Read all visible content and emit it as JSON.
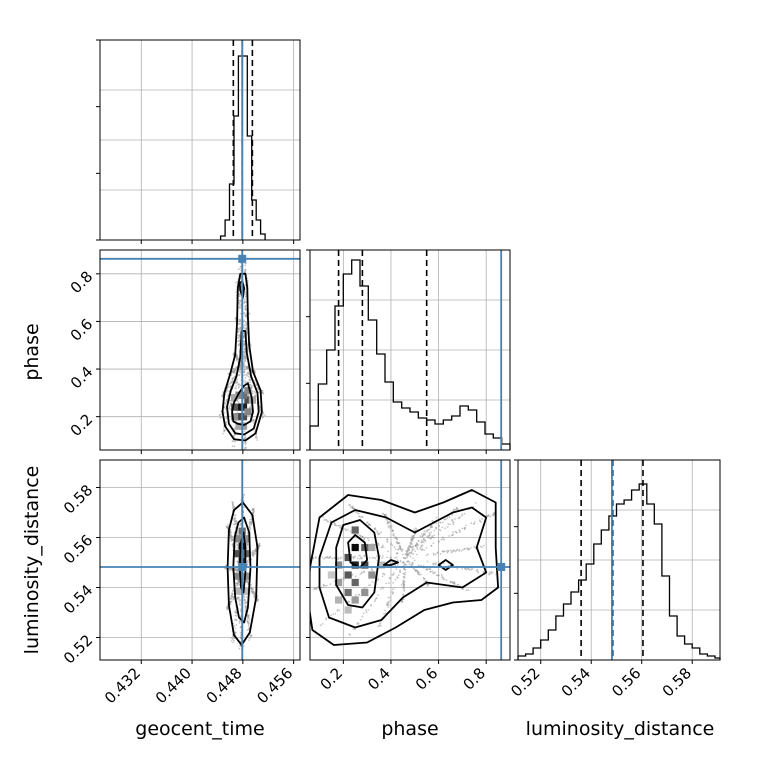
{
  "chart_data": {
    "type": "corner",
    "parameters": [
      {
        "name": "geocent_time",
        "label": "geocent_time",
        "range": [
          0.4255,
          0.457
        ],
        "ticks": [
          0.432,
          0.44,
          0.448,
          0.456
        ],
        "tick_labels": [
          "0.432",
          "0.440",
          "0.448",
          "0.456"
        ],
        "truth": 0.4479,
        "quantiles": [
          0.4465,
          0.4479,
          0.4495
        ],
        "hist": {
          "bins": [
            0.4445,
            0.4452,
            0.4459,
            0.4466,
            0.4473,
            0.448,
            0.4487,
            0.4494,
            0.4501,
            0.4508,
            0.4515
          ],
          "counts": [
            0.02,
            0.1,
            0.28,
            0.62,
            0.92,
            0.92,
            0.52,
            0.2,
            0.1,
            0.03
          ]
        }
      },
      {
        "name": "phase",
        "label": "phase",
        "range": [
          0.06,
          0.9
        ],
        "ticks": [
          0.2,
          0.4,
          0.6,
          0.8
        ],
        "tick_labels": [
          "0.2",
          "0.4",
          "0.6",
          "0.8"
        ],
        "truth": 0.863,
        "quantiles": [
          0.18,
          0.28,
          0.55
        ],
        "hist": {
          "bins": [
            0.06,
            0.095,
            0.13,
            0.165,
            0.2,
            0.235,
            0.27,
            0.305,
            0.34,
            0.375,
            0.41,
            0.445,
            0.48,
            0.515,
            0.55,
            0.585,
            0.62,
            0.655,
            0.69,
            0.725,
            0.76,
            0.795,
            0.83,
            0.865,
            0.9
          ],
          "counts": [
            0.12,
            0.33,
            0.5,
            0.72,
            0.88,
            0.95,
            0.82,
            0.65,
            0.48,
            0.34,
            0.24,
            0.21,
            0.19,
            0.16,
            0.15,
            0.13,
            0.15,
            0.17,
            0.22,
            0.2,
            0.14,
            0.08,
            0.06,
            0.03
          ]
        }
      },
      {
        "name": "luminosity_distance",
        "label": "luminosity_distance",
        "range": [
          0.511,
          0.591
        ],
        "ticks": [
          0.52,
          0.54,
          0.56,
          0.58
        ],
        "tick_labels": [
          "0.52",
          "0.54",
          "0.56",
          "0.58"
        ],
        "truth": 0.5482,
        "quantiles": [
          0.536,
          0.5485,
          0.5605
        ],
        "hist": {
          "bins": [
            0.511,
            0.514,
            0.517,
            0.52,
            0.523,
            0.526,
            0.529,
            0.532,
            0.535,
            0.538,
            0.541,
            0.544,
            0.547,
            0.55,
            0.553,
            0.556,
            0.559,
            0.562,
            0.565,
            0.568,
            0.571,
            0.574,
            0.577,
            0.58,
            0.583,
            0.586,
            0.589,
            0.591
          ],
          "counts": [
            0.02,
            0.03,
            0.06,
            0.1,
            0.15,
            0.22,
            0.28,
            0.34,
            0.4,
            0.48,
            0.58,
            0.65,
            0.72,
            0.78,
            0.8,
            0.85,
            0.88,
            0.78,
            0.68,
            0.42,
            0.22,
            0.12,
            0.08,
            0.06,
            0.03,
            0.02,
            0.01
          ]
        }
      }
    ],
    "pairs": [
      {
        "x": "geocent_time",
        "y": "phase",
        "contours": [
          [
            [
              0.4465,
              0.18
            ],
            [
              0.4472,
              0.17
            ],
            [
              0.4482,
              0.165
            ],
            [
              0.4492,
              0.18
            ],
            [
              0.4496,
              0.22
            ],
            [
              0.4494,
              0.28
            ],
            [
              0.4488,
              0.34
            ],
            [
              0.4482,
              0.33
            ],
            [
              0.4474,
              0.3
            ],
            [
              0.4466,
              0.26
            ],
            [
              0.4463,
              0.22
            ]
          ],
          [
            [
              0.4458,
              0.17
            ],
            [
              0.4468,
              0.13
            ],
            [
              0.4482,
              0.125
            ],
            [
              0.4497,
              0.15
            ],
            [
              0.4505,
              0.22
            ],
            [
              0.4503,
              0.3
            ],
            [
              0.4493,
              0.37
            ],
            [
              0.4486,
              0.47
            ],
            [
              0.4484,
              0.56
            ],
            [
              0.4478,
              0.56
            ],
            [
              0.4476,
              0.45
            ],
            [
              0.447,
              0.37
            ],
            [
              0.4461,
              0.31
            ],
            [
              0.4455,
              0.24
            ]
          ],
          [
            [
              0.4452,
              0.16
            ],
            [
              0.4466,
              0.105
            ],
            [
              0.4484,
              0.1
            ],
            [
              0.45,
              0.13
            ],
            [
              0.451,
              0.22
            ],
            [
              0.4508,
              0.31
            ],
            [
              0.4496,
              0.39
            ],
            [
              0.449,
              0.5
            ],
            [
              0.4488,
              0.62
            ],
            [
              0.4487,
              0.74
            ],
            [
              0.4484,
              0.8
            ],
            [
              0.4476,
              0.8
            ],
            [
              0.4472,
              0.74
            ],
            [
              0.4471,
              0.6
            ],
            [
              0.4468,
              0.46
            ],
            [
              0.446,
              0.38
            ],
            [
              0.4451,
              0.3
            ],
            [
              0.4448,
              0.22
            ]
          ],
          [
            [
              0.4476,
              0.73
            ],
            [
              0.448,
              0.7
            ],
            [
              0.4482,
              0.74
            ],
            [
              0.4479,
              0.77
            ],
            [
              0.4475,
              0.76
            ]
          ]
        ],
        "density": [
          [
            0.4474,
            0.24,
            1.0
          ],
          [
            0.4481,
            0.24,
            0.9
          ],
          [
            0.4474,
            0.2,
            0.75
          ],
          [
            0.4481,
            0.2,
            0.7
          ],
          [
            0.4467,
            0.24,
            0.65
          ],
          [
            0.4488,
            0.27,
            0.7
          ],
          [
            0.4481,
            0.29,
            0.55
          ],
          [
            0.4474,
            0.29,
            0.45
          ],
          [
            0.4488,
            0.31,
            0.45
          ],
          [
            0.4467,
            0.2,
            0.4
          ],
          [
            0.4488,
            0.22,
            0.45
          ],
          [
            0.4495,
            0.27,
            0.3
          ],
          [
            0.4481,
            0.16,
            0.35
          ],
          [
            0.4474,
            0.16,
            0.3
          ],
          [
            0.4467,
            0.28,
            0.3
          ]
        ]
      },
      {
        "x": "geocent_time",
        "y": "luminosity_distance",
        "contours": [
          [
            [
              0.4475,
              0.548
            ],
            [
              0.4477,
              0.558
            ],
            [
              0.4481,
              0.562
            ],
            [
              0.4484,
              0.556
            ],
            [
              0.4484,
              0.546
            ],
            [
              0.4481,
              0.538
            ],
            [
              0.4477,
              0.54
            ]
          ],
          [
            [
              0.4465,
              0.548
            ],
            [
              0.4467,
              0.56
            ],
            [
              0.4473,
              0.566
            ],
            [
              0.4482,
              0.568
            ],
            [
              0.449,
              0.562
            ],
            [
              0.4492,
              0.548
            ],
            [
              0.4488,
              0.532
            ],
            [
              0.4482,
              0.526
            ],
            [
              0.4474,
              0.528
            ],
            [
              0.4468,
              0.536
            ]
          ],
          [
            [
              0.4456,
              0.548
            ],
            [
              0.4458,
              0.563
            ],
            [
              0.4466,
              0.571
            ],
            [
              0.448,
              0.574
            ],
            [
              0.4495,
              0.569
            ],
            [
              0.4503,
              0.556
            ],
            [
              0.4501,
              0.536
            ],
            [
              0.4491,
              0.522
            ],
            [
              0.4478,
              0.517
            ],
            [
              0.4466,
              0.521
            ],
            [
              0.4458,
              0.533
            ]
          ]
        ],
        "density": [
          [
            0.4479,
            0.5565,
            1.0
          ],
          [
            0.4479,
            0.5505,
            0.85
          ],
          [
            0.4472,
            0.5535,
            0.7
          ],
          [
            0.4486,
            0.5535,
            0.6
          ],
          [
            0.4479,
            0.5445,
            0.6
          ],
          [
            0.4479,
            0.5625,
            0.55
          ],
          [
            0.4472,
            0.5445,
            0.45
          ],
          [
            0.4486,
            0.5445,
            0.4
          ],
          [
            0.4472,
            0.5595,
            0.45
          ],
          [
            0.4486,
            0.5595,
            0.4
          ],
          [
            0.4479,
            0.5385,
            0.35
          ],
          [
            0.4472,
            0.5385,
            0.25
          ],
          [
            0.4486,
            0.5385,
            0.2
          ]
        ]
      },
      {
        "x": "phase",
        "y": "luminosity_distance",
        "contours": [
          [
            [
              0.22,
              0.558
            ],
            [
              0.25,
              0.561
            ],
            [
              0.29,
              0.558
            ],
            [
              0.3,
              0.551
            ],
            [
              0.27,
              0.548
            ],
            [
              0.23,
              0.55
            ]
          ],
          [
            [
              0.17,
              0.556
            ],
            [
              0.2,
              0.565
            ],
            [
              0.27,
              0.567
            ],
            [
              0.33,
              0.562
            ],
            [
              0.35,
              0.552
            ],
            [
              0.33,
              0.538
            ],
            [
              0.28,
              0.532
            ],
            [
              0.22,
              0.533
            ],
            [
              0.17,
              0.541
            ]
          ],
          [
            [
              0.1,
              0.552
            ],
            [
              0.15,
              0.566
            ],
            [
              0.25,
              0.571
            ],
            [
              0.38,
              0.568
            ],
            [
              0.5,
              0.562
            ],
            [
              0.58,
              0.566
            ],
            [
              0.66,
              0.57
            ],
            [
              0.74,
              0.572
            ],
            [
              0.8,
              0.568
            ],
            [
              0.76,
              0.556
            ],
            [
              0.8,
              0.546
            ],
            [
              0.7,
              0.54
            ],
            [
              0.55,
              0.542
            ],
            [
              0.45,
              0.536
            ],
            [
              0.36,
              0.527
            ],
            [
              0.25,
              0.524
            ],
            [
              0.14,
              0.528
            ],
            [
              0.1,
              0.54
            ]
          ],
          [
            [
              0.06,
              0.548
            ],
            [
              0.1,
              0.568
            ],
            [
              0.22,
              0.577
            ],
            [
              0.36,
              0.575
            ],
            [
              0.5,
              0.57
            ],
            [
              0.62,
              0.574
            ],
            [
              0.74,
              0.579
            ],
            [
              0.84,
              0.574
            ],
            [
              0.84,
              0.556
            ],
            [
              0.85,
              0.54
            ],
            [
              0.78,
              0.535
            ],
            [
              0.66,
              0.534
            ],
            [
              0.54,
              0.531
            ],
            [
              0.42,
              0.524
            ],
            [
              0.3,
              0.518
            ],
            [
              0.16,
              0.517
            ],
            [
              0.07,
              0.523
            ],
            [
              0.05,
              0.536
            ]
          ],
          [
            [
              0.37,
              0.549
            ],
            [
              0.4,
              0.551
            ],
            [
              0.43,
              0.55
            ],
            [
              0.4,
              0.549
            ]
          ],
          [
            [
              0.6,
              0.549
            ],
            [
              0.63,
              0.551
            ],
            [
              0.66,
              0.549
            ],
            [
              0.63,
              0.547
            ]
          ]
        ],
        "density": [
          [
            0.25,
            0.556,
            1.0
          ],
          [
            0.25,
            0.549,
            0.9
          ],
          [
            0.22,
            0.552,
            0.7
          ],
          [
            0.29,
            0.549,
            0.75
          ],
          [
            0.25,
            0.563,
            0.6
          ],
          [
            0.22,
            0.545,
            0.65
          ],
          [
            0.29,
            0.556,
            0.6
          ],
          [
            0.25,
            0.542,
            0.6
          ],
          [
            0.22,
            0.538,
            0.55
          ],
          [
            0.18,
            0.549,
            0.45
          ],
          [
            0.32,
            0.545,
            0.4
          ],
          [
            0.18,
            0.542,
            0.35
          ],
          [
            0.29,
            0.538,
            0.4
          ],
          [
            0.25,
            0.535,
            0.35
          ],
          [
            0.32,
            0.556,
            0.3
          ],
          [
            0.18,
            0.535,
            0.25
          ],
          [
            0.22,
            0.531,
            0.2
          ],
          [
            0.36,
            0.549,
            0.2
          ],
          [
            0.15,
            0.545,
            0.15
          ]
        ]
      }
    ]
  }
}
